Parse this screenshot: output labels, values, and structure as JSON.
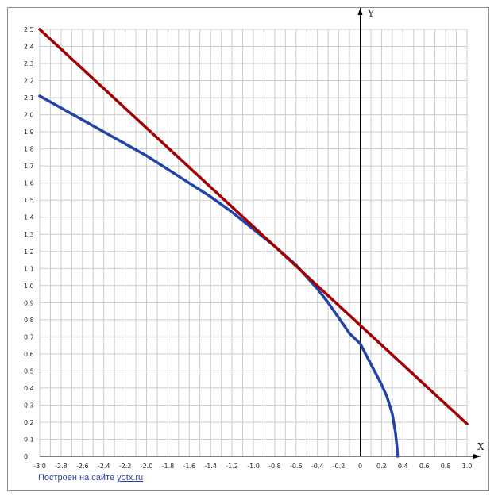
{
  "chart_data": {
    "type": "line",
    "xlim": [
      -3.0,
      1.0
    ],
    "ylim": [
      0,
      2.5
    ],
    "x_ticks": [
      "-3.0",
      "-2.8",
      "-2.6",
      "-2.4",
      "-2.2",
      "-2.0",
      "-1.8",
      "-1.6",
      "-1.4",
      "-1.2",
      "-1.0",
      "-0.8",
      "-0.6",
      "-0.4",
      "-0.2",
      "0",
      "0.2",
      "0.4",
      "0.6",
      "0.8",
      "1.0"
    ],
    "y_ticks": [
      "0",
      "0.1",
      "0.2",
      "0.3",
      "0.4",
      "0.5",
      "0.6",
      "0.7",
      "0.8",
      "0.9",
      "1.0",
      "1.1",
      "1.2",
      "1.3",
      "1.4",
      "1.5",
      "1.6",
      "1.7",
      "1.8",
      "1.9",
      "2.0",
      "2.1",
      "2.2",
      "2.3",
      "2.4",
      "2.5"
    ],
    "x_axis_name": "X",
    "y_axis_name": "Y",
    "grid": true,
    "series": [
      {
        "color": "#2244aa",
        "points": [
          [
            -3.0,
            2.11
          ],
          [
            -2.8,
            2.04
          ],
          [
            -2.6,
            1.97
          ],
          [
            -2.4,
            1.9
          ],
          [
            -2.2,
            1.83
          ],
          [
            -2.0,
            1.76
          ],
          [
            -1.8,
            1.68
          ],
          [
            -1.6,
            1.6
          ],
          [
            -1.4,
            1.52
          ],
          [
            -1.2,
            1.43
          ],
          [
            -1.0,
            1.33
          ],
          [
            -0.8,
            1.23
          ],
          [
            -0.6,
            1.12
          ],
          [
            -0.4,
            0.98
          ],
          [
            -0.3,
            0.9
          ],
          [
            -0.2,
            0.81
          ],
          [
            -0.1,
            0.72
          ],
          [
            0.0,
            0.66
          ],
          [
            0.1,
            0.54
          ],
          [
            0.2,
            0.42
          ],
          [
            0.25,
            0.35
          ],
          [
            0.3,
            0.25
          ],
          [
            0.33,
            0.14
          ],
          [
            0.345,
            0.05
          ],
          [
            0.35,
            0.0
          ]
        ]
      },
      {
        "color": "#a00000",
        "points": [
          [
            -3.0,
            2.5
          ],
          [
            1.0,
            0.19
          ]
        ]
      }
    ]
  },
  "credit": {
    "text": "Построен на сайте",
    "link": "yotx.ru"
  }
}
